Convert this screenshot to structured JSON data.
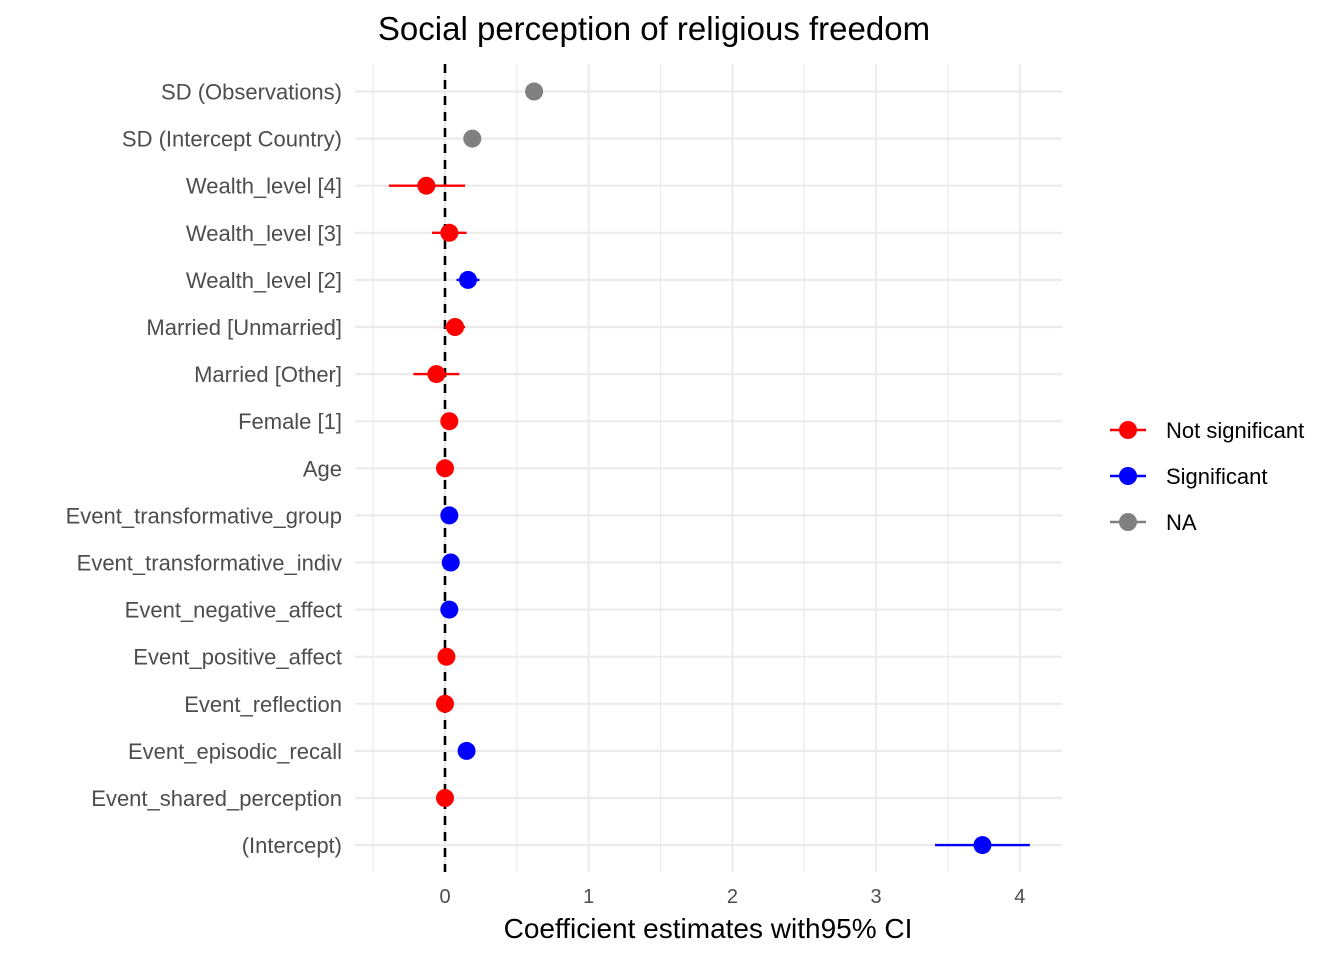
{
  "chart_data": {
    "type": "scatter",
    "title": "Social perception of religious freedom",
    "xlabel": "Coefficient estimates with95% CI",
    "ylabel": "",
    "xlim": [
      -0.5,
      4.3
    ],
    "x_ticks": [
      0,
      1,
      2,
      3,
      4
    ],
    "grid": true,
    "reference_line": {
      "x": 0,
      "style": "dashed",
      "color": "#000000"
    },
    "legend": {
      "position": "right",
      "entries": [
        {
          "label": "Not significant",
          "color": "#ff0000"
        },
        {
          "label": "Significant",
          "color": "#0000ff"
        },
        {
          "label": "NA",
          "color": "#808080"
        }
      ]
    },
    "categories": [
      "SD (Observations)",
      "SD (Intercept Country)",
      "Wealth_level [4]",
      "Wealth_level [3]",
      "Wealth_level [2]",
      "Married [Unmarried]",
      "Married [Other]",
      "Female [1]",
      "Age",
      "Event_transformative_group",
      "Event_transformative_indiv",
      "Event_negative_affect",
      "Event_positive_affect",
      "Event_reflection",
      "Event_episodic_recall",
      "Event_shared_perception",
      "(Intercept)"
    ],
    "points": [
      {
        "term": "SD (Observations)",
        "estimate": 0.62,
        "low": null,
        "high": null,
        "group": "NA"
      },
      {
        "term": "SD (Intercept Country)",
        "estimate": 0.19,
        "low": null,
        "high": null,
        "group": "NA"
      },
      {
        "term": "Wealth_level [4]",
        "estimate": -0.13,
        "low": -0.39,
        "high": 0.14,
        "group": "Not significant"
      },
      {
        "term": "Wealth_level [3]",
        "estimate": 0.03,
        "low": -0.09,
        "high": 0.15,
        "group": "Not significant"
      },
      {
        "term": "Wealth_level [2]",
        "estimate": 0.16,
        "low": 0.08,
        "high": 0.24,
        "group": "Significant"
      },
      {
        "term": "Married [Unmarried]",
        "estimate": 0.07,
        "low": 0.0,
        "high": 0.14,
        "group": "Not significant"
      },
      {
        "term": "Married [Other]",
        "estimate": -0.06,
        "low": -0.22,
        "high": 0.1,
        "group": "Not significant"
      },
      {
        "term": "Female [1]",
        "estimate": 0.03,
        "low": -0.01,
        "high": 0.07,
        "group": "Not significant"
      },
      {
        "term": "Age",
        "estimate": 0.0,
        "low": -0.01,
        "high": 0.01,
        "group": "Not significant"
      },
      {
        "term": "Event_transformative_group",
        "estimate": 0.03,
        "low": 0.01,
        "high": 0.05,
        "group": "Significant"
      },
      {
        "term": "Event_transformative_indiv",
        "estimate": 0.04,
        "low": 0.02,
        "high": 0.06,
        "group": "Significant"
      },
      {
        "term": "Event_negative_affect",
        "estimate": 0.03,
        "low": 0.01,
        "high": 0.05,
        "group": "Significant"
      },
      {
        "term": "Event_positive_affect",
        "estimate": 0.01,
        "low": -0.01,
        "high": 0.03,
        "group": "Not significant"
      },
      {
        "term": "Event_reflection",
        "estimate": 0.0,
        "low": -0.02,
        "high": 0.02,
        "group": "Not significant"
      },
      {
        "term": "Event_episodic_recall",
        "estimate": 0.15,
        "low": 0.12,
        "high": 0.18,
        "group": "Significant"
      },
      {
        "term": "Event_shared_perception",
        "estimate": 0.0,
        "low": -0.02,
        "high": 0.02,
        "group": "Not significant"
      },
      {
        "term": "(Intercept)",
        "estimate": 3.74,
        "low": 3.41,
        "high": 4.07,
        "group": "Significant"
      }
    ]
  }
}
